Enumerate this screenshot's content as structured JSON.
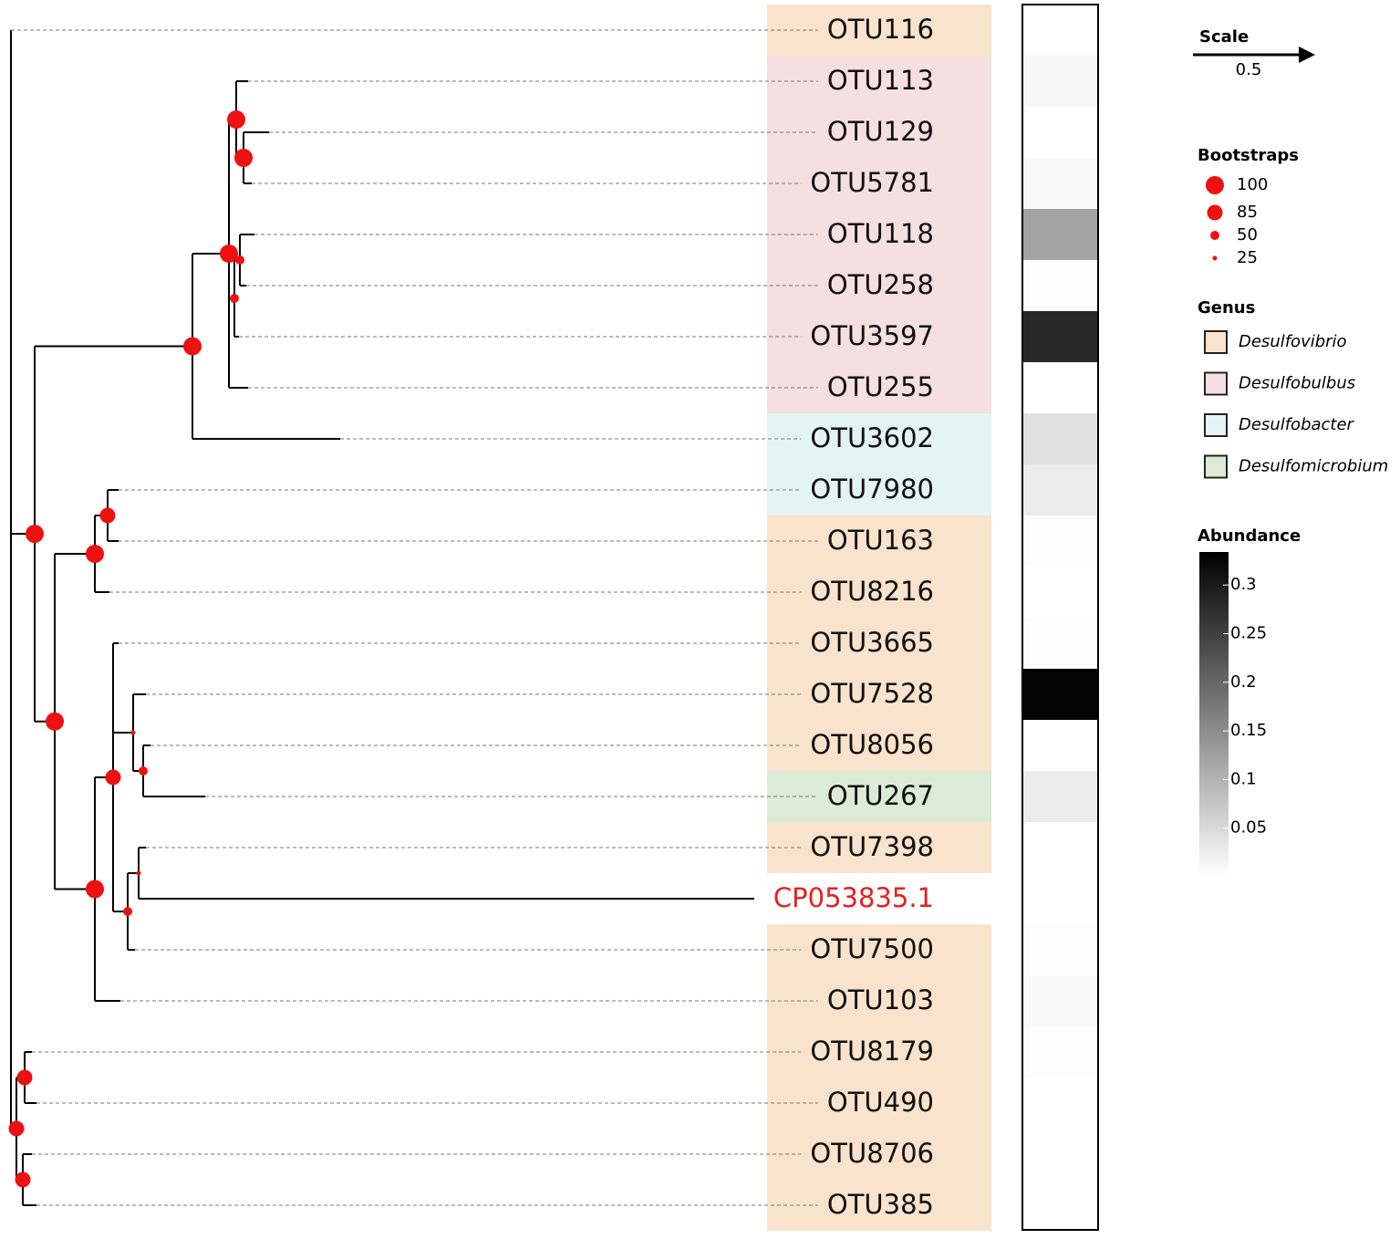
{
  "leaves": [
    {
      "label": "OTU116",
      "genus": "Desulfovibrio",
      "abundance": 0
    },
    {
      "label": "OTU113",
      "genus": "Desulfobulbus",
      "abundance": 0.01
    },
    {
      "label": "OTU129",
      "genus": "Desulfobulbus",
      "abundance": 0
    },
    {
      "label": "OTU5781",
      "genus": "Desulfobulbus",
      "abundance": 0.008
    },
    {
      "label": "OTU118",
      "genus": "Desulfobulbus",
      "abundance": 0.12
    },
    {
      "label": "OTU258",
      "genus": "Desulfobulbus",
      "abundance": 0.004
    },
    {
      "label": "OTU3597",
      "genus": "Desulfobulbus",
      "abundance": 0.28
    },
    {
      "label": "OTU255",
      "genus": "Desulfobulbus",
      "abundance": 0
    },
    {
      "label": "OTU3602",
      "genus": "Desulfobacter",
      "abundance": 0.04
    },
    {
      "label": "OTU7980",
      "genus": "Desulfobacter",
      "abundance": 0.025
    },
    {
      "label": "OTU163",
      "genus": "Desulfovibrio",
      "abundance": 0.004
    },
    {
      "label": "OTU8216",
      "genus": "Desulfovibrio",
      "abundance": 0
    },
    {
      "label": "OTU3665",
      "genus": "Desulfovibrio",
      "abundance": 0.004
    },
    {
      "label": "OTU7528",
      "genus": "Desulfovibrio",
      "abundance": 0.33
    },
    {
      "label": "OTU8056",
      "genus": "Desulfovibrio",
      "abundance": 0
    },
    {
      "label": "OTU267",
      "genus": "Desulfomicrobium",
      "abundance": 0.025
    },
    {
      "label": "OTU7398",
      "genus": "Desulfovibrio",
      "abundance": 0
    },
    {
      "label": "CP053835.1",
      "genus": null,
      "abundance": null,
      "color": "#e8201e"
    },
    {
      "label": "OTU7500",
      "genus": "Desulfovibrio",
      "abundance": 0.004
    },
    {
      "label": "OTU103",
      "genus": "Desulfovibrio",
      "abundance": 0.006
    },
    {
      "label": "OTU8179",
      "genus": "Desulfovibrio",
      "abundance": 0.004
    },
    {
      "label": "OTU490",
      "genus": "Desulfovibrio",
      "abundance": 0
    },
    {
      "label": "OTU8706",
      "genus": "Desulfovibrio",
      "abundance": 0
    },
    {
      "label": "OTU385",
      "genus": "Desulfovibrio",
      "abundance": 0
    }
  ],
  "bootstraps": [
    null,
    100,
    100,
    100,
    100,
    100,
    50,
    50,
    100,
    100,
    85,
    100,
    85,
    25,
    50,
    50,
    25,
    85,
    85,
    85
  ],
  "bootstrap_color": "#ee1111",
  "legend": {
    "scale_title": "Scale",
    "scale_value": 0.5,
    "bootstrap_title": "Bootstraps",
    "bootstrap_levels": [
      100,
      85,
      50,
      25
    ],
    "genus_title": "Genus",
    "genera": [
      {
        "name": "Desulfovibrio",
        "color": "#f9e3cc"
      },
      {
        "name": "Desulfobulbus",
        "color": "#f5dfe0"
      },
      {
        "name": "Desulfobacter",
        "color": "#e4f4f3"
      },
      {
        "name": "Desulfomicrobium",
        "color": "#dcebd5"
      }
    ],
    "abundance_title": "Abundance",
    "abundance_lim": [
      0,
      0.334
    ],
    "abundance_ticks": [
      0.05,
      0.1,
      0.15,
      0.2,
      0.25,
      0.3
    ]
  }
}
